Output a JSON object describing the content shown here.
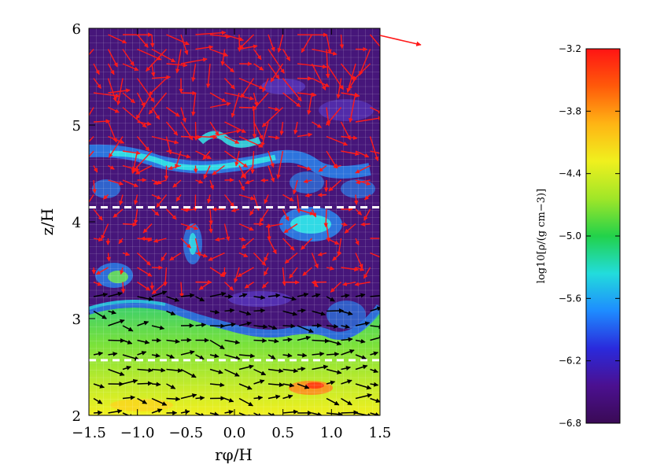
{
  "chart_data": {
    "type": "heatmap",
    "xlabel": "rφ/H",
    "ylabel": "z/H",
    "xlim": [
      -1.5,
      1.5
    ],
    "ylim": [
      2,
      6
    ],
    "x_ticks": [
      -1.5,
      -1.0,
      -0.5,
      0.0,
      0.5,
      1.0,
      1.5
    ],
    "x_tick_labels": [
      "−1.5",
      "−1.0",
      "−0.5",
      "0.0",
      "0.5",
      "1.0",
      "1.5"
    ],
    "y_ticks": [
      2,
      3,
      4,
      5,
      6
    ],
    "y_tick_labels": [
      "2",
      "3",
      "4",
      "5",
      "6"
    ],
    "grid": true,
    "reference_lines": [
      {
        "z": 4.15,
        "style": "dashed",
        "color": "#ffffff"
      },
      {
        "z": 2.57,
        "style": "dashed",
        "color": "#ffffff"
      }
    ],
    "vector_colors": {
      "upper": "#ff1a1a",
      "lower": "#000000"
    },
    "colorbar": {
      "label": "log10[ρ/(g cm−3)]",
      "range": [
        -6.8,
        -3.2
      ],
      "ticks": [
        -3.2,
        -3.8,
        -4.4,
        -5.0,
        -5.6,
        -6.2,
        -6.8
      ],
      "tick_labels": [
        "−3.2",
        "−3.8",
        "−4.4",
        "−5.0",
        "−5.6",
        "−6.2",
        "−6.8"
      ],
      "colormap": [
        "#3a0a55",
        "#4b1090",
        "#2a2adc",
        "#1e8cff",
        "#22dcdc",
        "#22d24a",
        "#a0e628",
        "#f0f01e",
        "#ffb414",
        "#ff5a0a",
        "#ff1414"
      ]
    }
  }
}
